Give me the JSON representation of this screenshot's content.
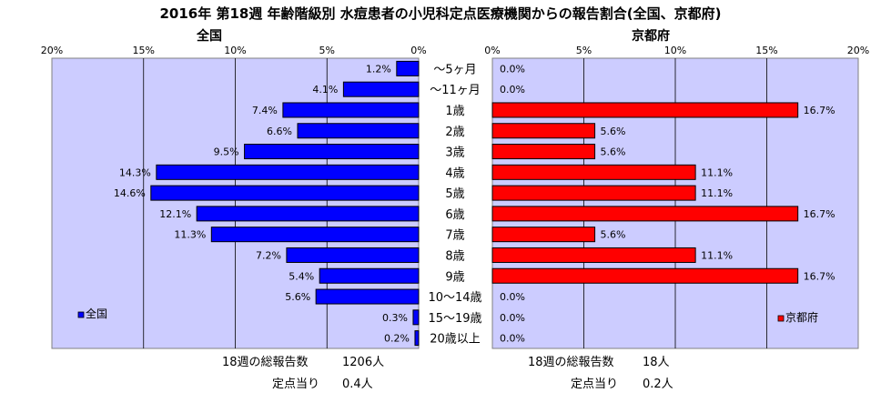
{
  "chart_data": {
    "type": "bar",
    "title": "2016年 第18週 年齢階級別 水痘患者の小児科定点医療機関からの報告割合(全国、京都府)",
    "categories": [
      "～5ヶ月",
      "～11ヶ月",
      "1歳",
      "2歳",
      "3歳",
      "4歳",
      "5歳",
      "6歳",
      "7歳",
      "8歳",
      "9歳",
      "10～14歳",
      "15～19歳",
      "20歳以上"
    ],
    "axis_ticks": [
      "0%",
      "5%",
      "10%",
      "15%",
      "20%"
    ],
    "xlim": [
      0,
      20
    ],
    "grid": true,
    "panels": [
      {
        "name": "全国",
        "side": "left",
        "legend": "全国",
        "legend_position": "bottom-left",
        "color": "#0000ff",
        "plot_bg": "#ccccff",
        "values": [
          1.2,
          4.1,
          7.4,
          6.6,
          9.5,
          14.3,
          14.6,
          12.1,
          11.3,
          7.2,
          5.4,
          5.6,
          0.3,
          0.2
        ],
        "labels": [
          "1.2%",
          "4.1%",
          "7.4%",
          "6.6%",
          "9.5%",
          "14.3%",
          "14.6%",
          "12.1%",
          "11.3%",
          "7.2%",
          "5.4%",
          "5.6%",
          "0.3%",
          "0.2%"
        ],
        "total_label": "18週の総報告数",
        "total_value": "1206人",
        "per_site_label": "定点当り",
        "per_site_value": "0.4人"
      },
      {
        "name": "京都府",
        "side": "right",
        "legend": "京都府",
        "legend_position": "bottom-right",
        "color": "#ff0000",
        "plot_bg": "#ccccff",
        "values": [
          0.0,
          0.0,
          16.7,
          5.6,
          5.6,
          11.1,
          11.1,
          16.7,
          5.6,
          11.1,
          16.7,
          0.0,
          0.0,
          0.0
        ],
        "labels": [
          "0.0%",
          "0.0%",
          "16.7%",
          "5.6%",
          "5.6%",
          "11.1%",
          "11.1%",
          "16.7%",
          "5.6%",
          "11.1%",
          "16.7%",
          "0.0%",
          "0.0%",
          "0.0%"
        ],
        "total_label": "18週の総報告数",
        "total_value": "18人",
        "per_site_label": "定点当り",
        "per_site_value": "0.2人"
      }
    ]
  }
}
